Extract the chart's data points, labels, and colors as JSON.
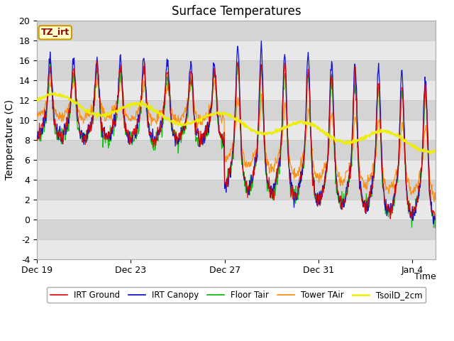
{
  "title": "Surface Temperatures",
  "ylabel": "Temperature (C)",
  "ylim": [
    -4,
    20
  ],
  "yticks": [
    -4,
    -2,
    0,
    2,
    4,
    6,
    8,
    10,
    12,
    14,
    16,
    18,
    20
  ],
  "xtick_labels": [
    "Dec 19",
    "Dec 23",
    "Dec 27",
    "Dec 31",
    "Jan 4"
  ],
  "legend_entries": [
    {
      "label": "IRT Ground",
      "color": "#dd0000",
      "lw": 1.2
    },
    {
      "label": "IRT Canopy",
      "color": "#0000cc",
      "lw": 1.2
    },
    {
      "label": "Floor Tair",
      "color": "#00bb00",
      "lw": 1.2
    },
    {
      "label": "Tower TAir",
      "color": "#ff8800",
      "lw": 1.2
    },
    {
      "label": "TsoilD_2cm",
      "color": "#eeee00",
      "lw": 1.8
    }
  ],
  "tz_label": "TZ_irt",
  "fig_bg": "#ffffff",
  "plot_bg_light": "#e8e8e8",
  "plot_bg_dark": "#d4d4d4",
  "title_fontsize": 12,
  "axis_label_fontsize": 10,
  "tick_fontsize": 9
}
